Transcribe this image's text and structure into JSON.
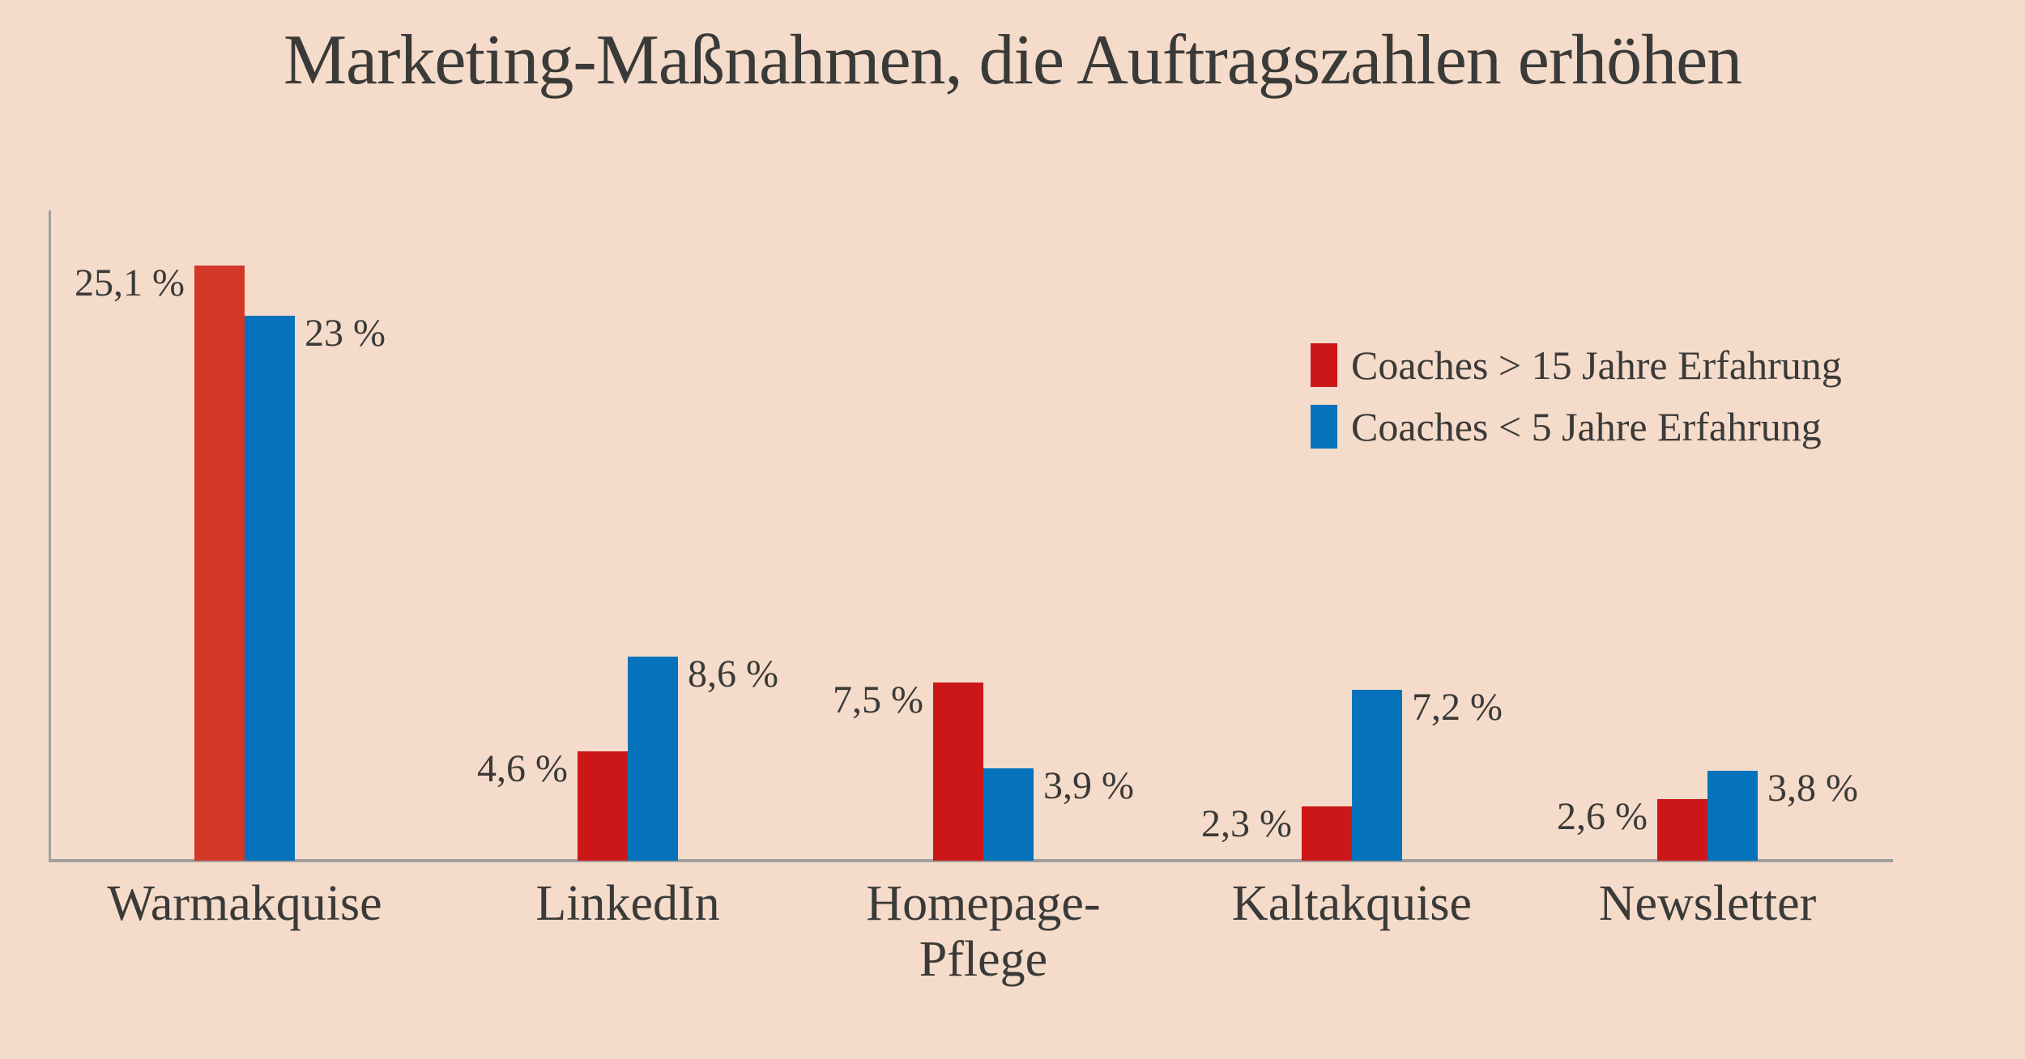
{
  "title": "Marketing-Maßnahmen, die Auftragszahlen erhöhen",
  "colors": {
    "background": "#f5dbca",
    "text": "#3a3a38",
    "axis": "#a0a09d",
    "red_highlight": "#d23727",
    "red": "#cc1719",
    "blue": "#0473bb"
  },
  "chart_data": {
    "type": "bar",
    "title": "Marketing-Maßnahmen, die Auftragszahlen erhöhen",
    "categories": [
      "Warmakquise",
      "LinkedIn",
      "Homepage-\nPflege",
      "Kaltakquise",
      "Newsletter"
    ],
    "series": [
      {
        "name": "Coaches > 15 Jahre Erfahrung",
        "color": "#cc1719",
        "bar_colors": [
          "#d23727",
          "#cc1719",
          "#cc1719",
          "#cc1719",
          "#cc1719"
        ],
        "values": [
          25.1,
          4.6,
          7.5,
          2.3,
          2.6
        ],
        "value_labels": [
          "25,1 %",
          "4,6 %",
          "7,5 %",
          "2,3 %",
          "2,6 %"
        ],
        "label_side": "left"
      },
      {
        "name": "Coaches < 5 Jahre Erfahrung",
        "color": "#0473bb",
        "bar_colors": [
          "#0473bb",
          "#0473bb",
          "#0473bb",
          "#0473bb",
          "#0473bb"
        ],
        "values": [
          23,
          8.6,
          3.9,
          7.2,
          3.8
        ],
        "value_labels": [
          "23 %",
          "8,6 %",
          "3,9 %",
          "7,2 %",
          "3,8 %"
        ],
        "label_side": "right"
      }
    ],
    "xlabel": "",
    "ylabel": "",
    "unit": "%",
    "ylim": [
      0,
      27.5
    ],
    "grid": false,
    "legend_position": "upper-right"
  }
}
